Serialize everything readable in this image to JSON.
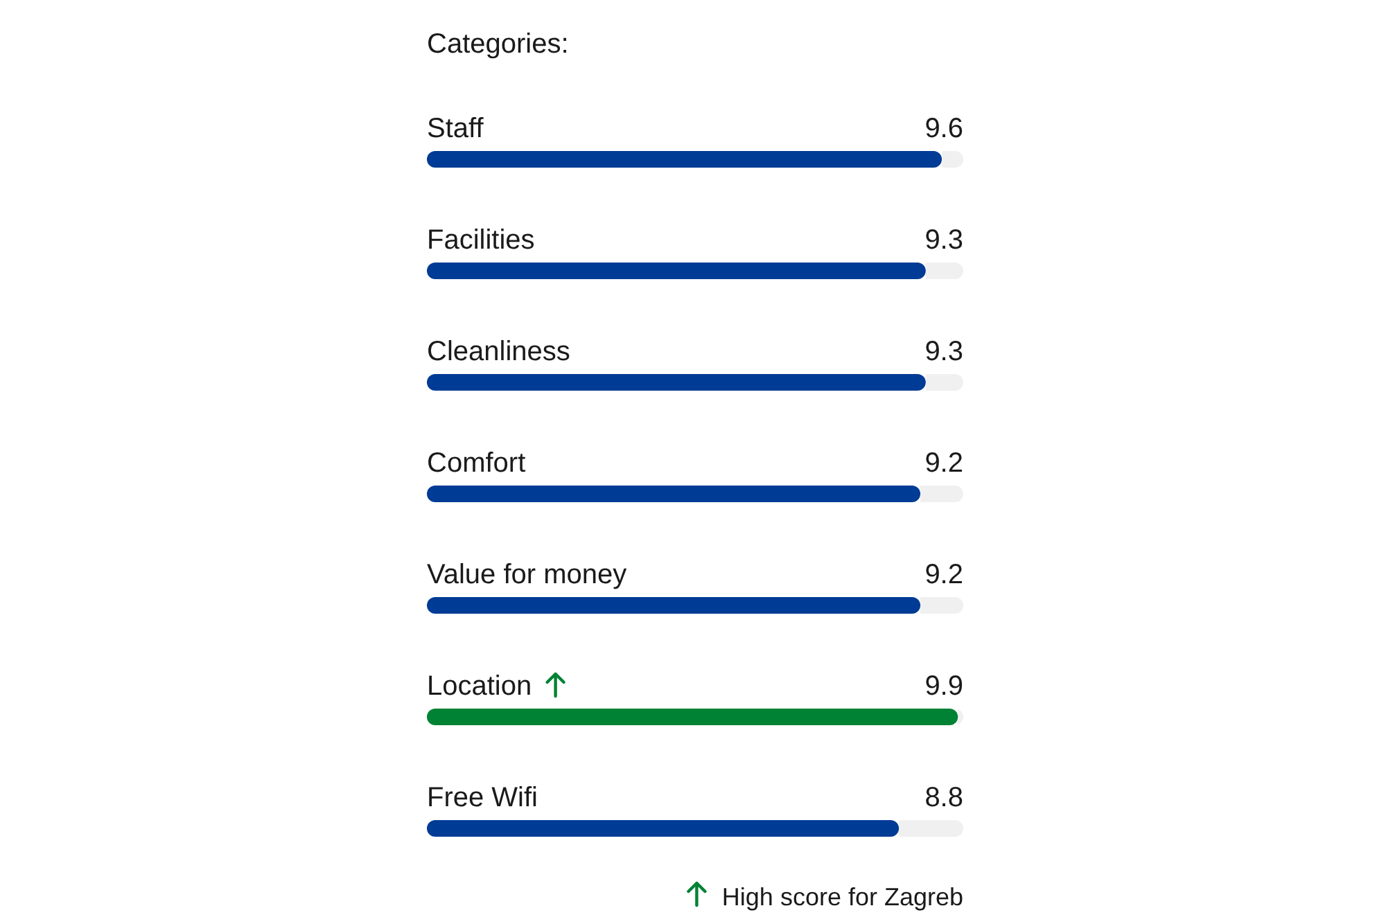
{
  "chart_data": {
    "type": "bar",
    "orientation": "horizontal",
    "title": "Categories:",
    "categories": [
      "Staff",
      "Facilities",
      "Cleanliness",
      "Comfort",
      "Value for money",
      "Location",
      "Free Wifi"
    ],
    "values": [
      9.6,
      9.3,
      9.3,
      9.2,
      9.2,
      9.9,
      8.8
    ],
    "colors": [
      "#003b95",
      "#003b95",
      "#003b95",
      "#003b95",
      "#003b95",
      "#008234",
      "#003b95"
    ],
    "xlim": [
      0,
      10
    ],
    "data_labels": true,
    "annotations": [
      "High score for Zagreb"
    ]
  }
}
